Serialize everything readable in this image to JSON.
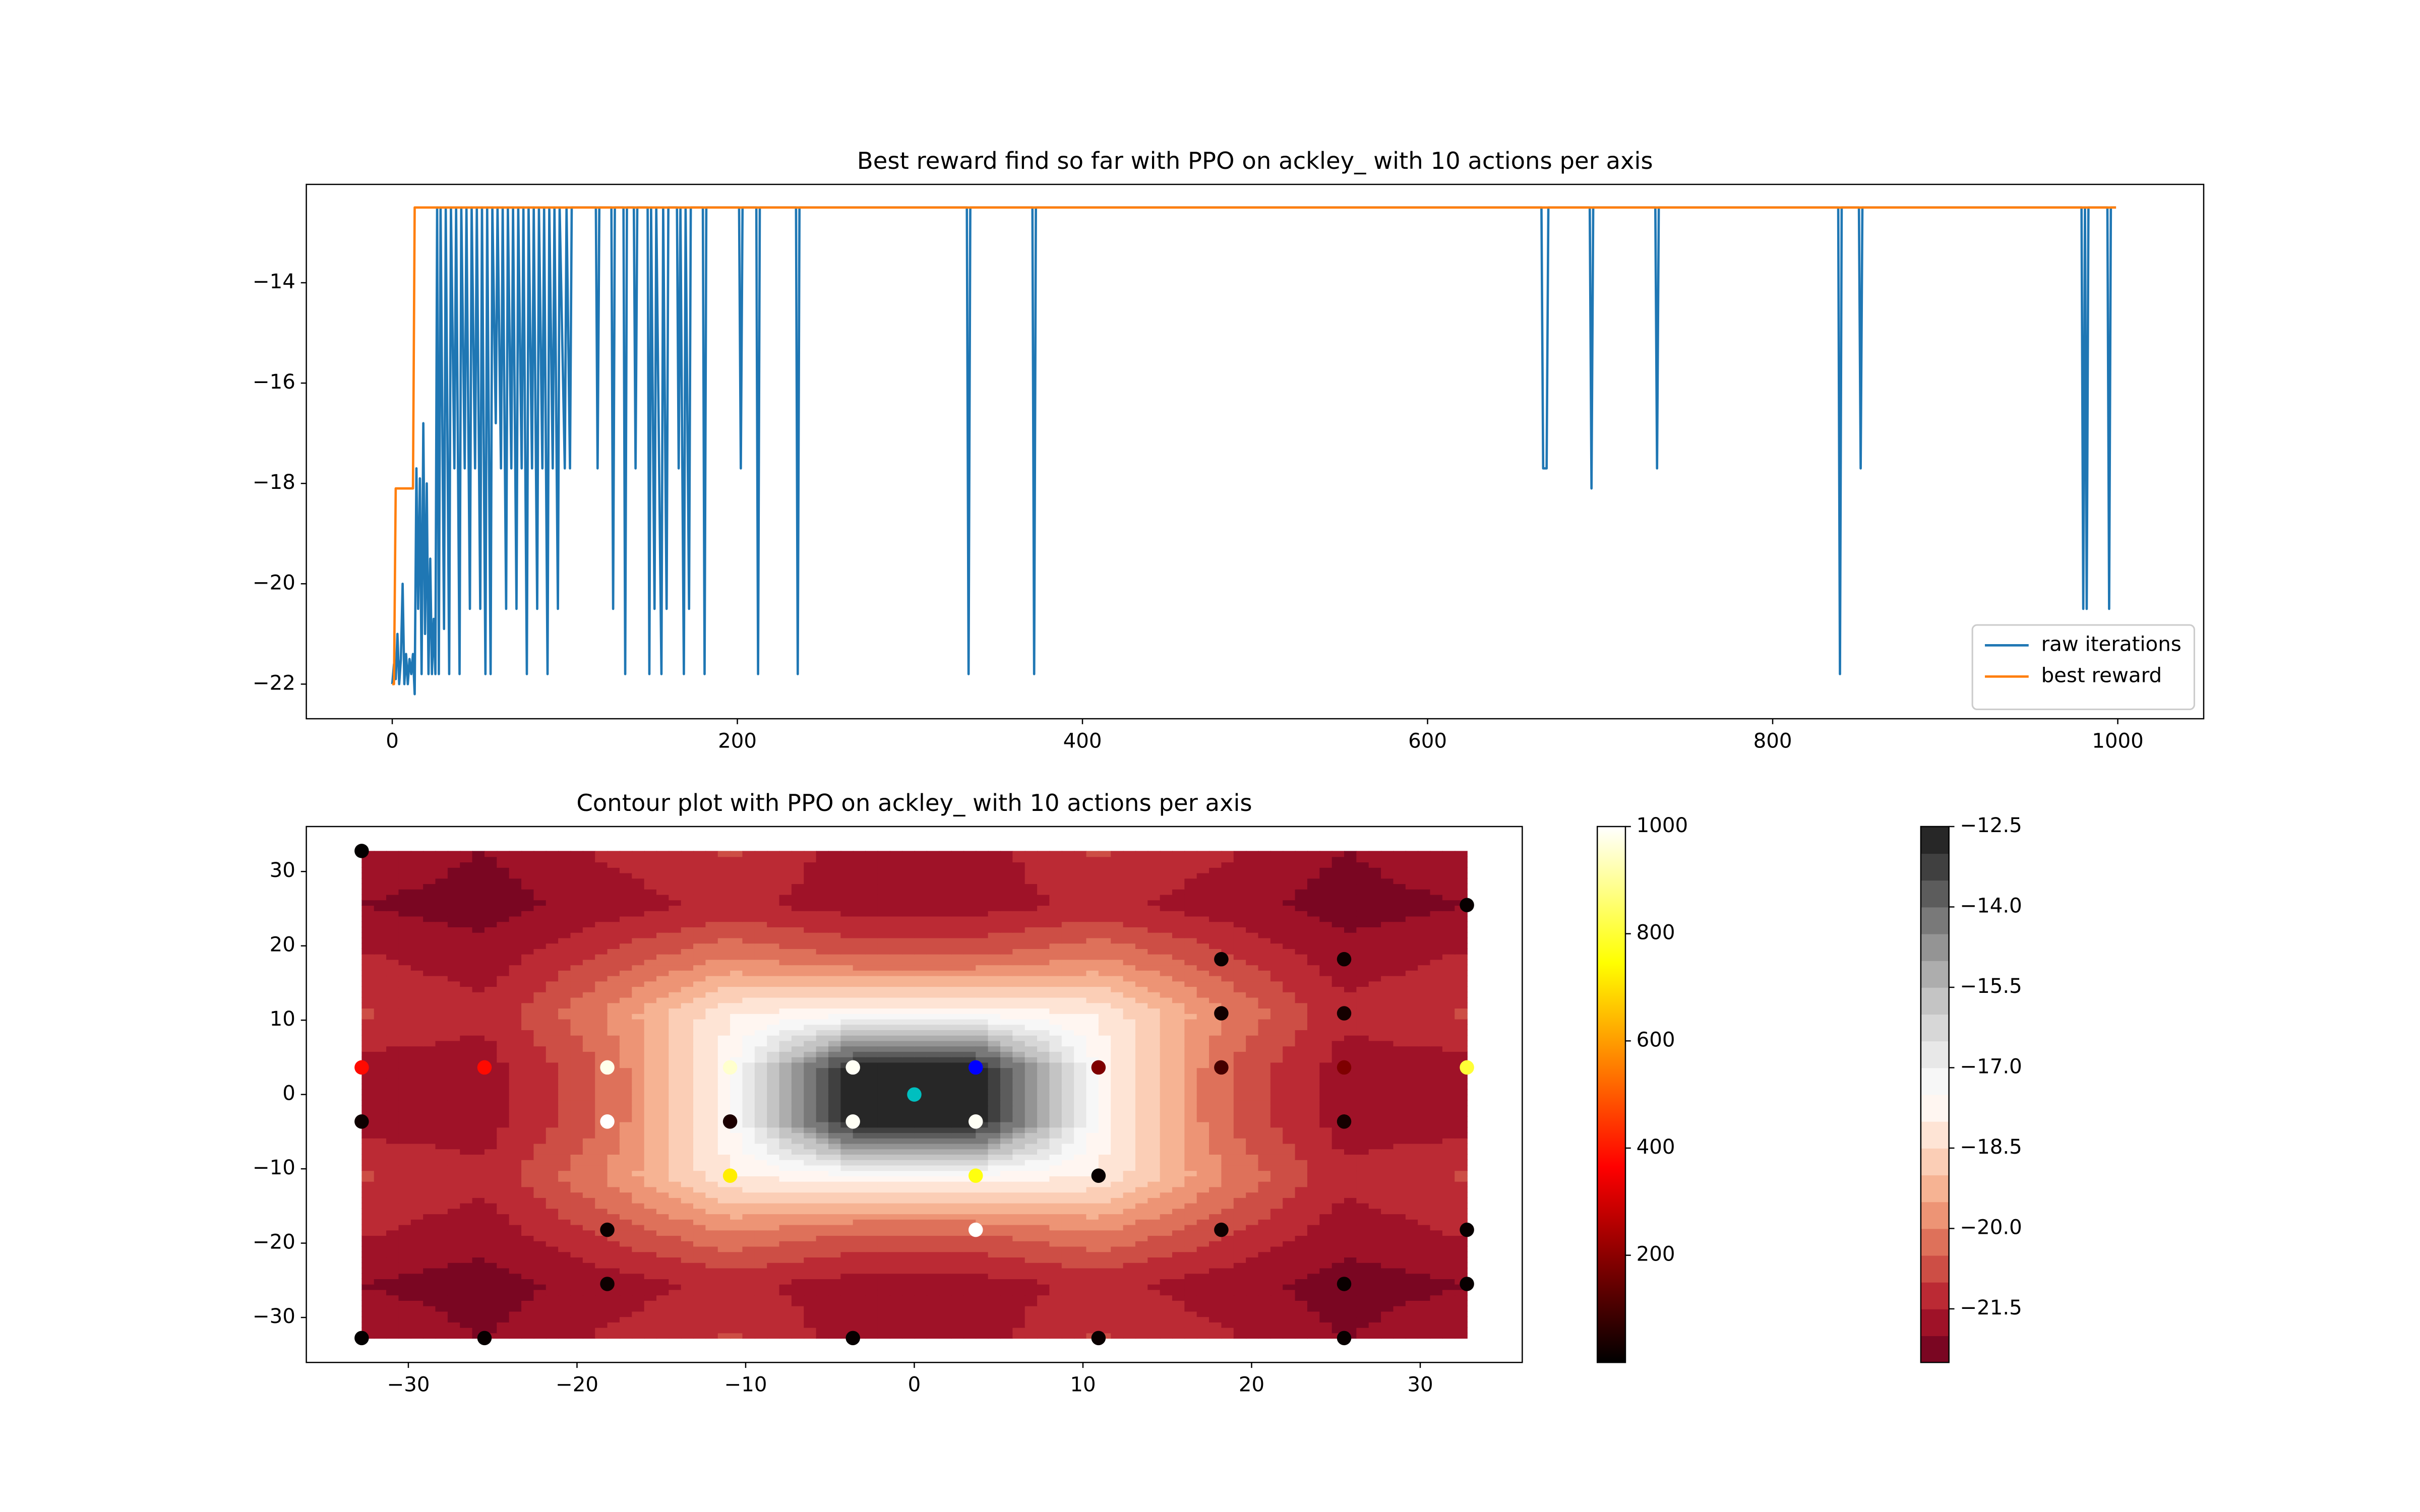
{
  "chart_data": [
    {
      "type": "line",
      "title": "Best reward find so far with PPO on ackley_ with 10 actions per axis",
      "xlim": [
        -49.8,
        1049.8
      ],
      "ylim": [
        -22.69,
        -12.04
      ],
      "xticks": [
        0,
        200,
        400,
        600,
        800,
        1000
      ],
      "yticks": [
        {
          "value": -22,
          "label": "−22"
        },
        {
          "value": -20,
          "label": "−20"
        },
        {
          "value": -18,
          "label": "−18"
        },
        {
          "value": -16,
          "label": "−16"
        },
        {
          "value": -14,
          "label": "−14"
        }
      ],
      "legend": "lower right",
      "series": [
        {
          "name": "raw iterations",
          "color": "#1f77b4",
          "x": [
            0,
            1,
            2,
            3,
            4,
            5,
            6,
            7,
            8,
            9,
            10,
            11,
            12,
            13,
            14,
            15,
            16,
            17,
            18,
            19,
            20,
            21,
            22,
            23,
            24,
            25,
            26,
            27,
            28,
            30,
            31,
            33,
            34,
            36,
            37,
            39,
            40,
            42,
            43,
            45,
            46,
            48,
            49,
            51,
            52,
            54,
            55,
            57,
            58,
            60,
            61,
            63,
            64,
            66,
            67,
            69,
            70,
            72,
            73,
            75,
            76,
            78,
            79,
            81,
            82,
            84,
            85,
            87,
            88,
            90,
            91,
            93,
            94,
            96,
            97,
            100,
            101,
            103,
            104,
            118,
            119,
            120,
            127,
            128,
            129,
            134,
            135,
            136,
            140,
            141,
            142,
            148,
            149,
            150,
            152,
            153,
            156,
            157,
            159,
            160,
            165,
            166,
            167,
            169,
            170,
            172,
            173,
            180,
            181,
            182,
            201,
            202,
            203,
            211,
            212,
            213,
            234,
            235,
            236,
            333,
            334,
            335,
            371,
            372,
            373,
            666,
            667,
            669,
            670,
            694,
            695,
            696,
            732,
            733,
            734,
            838,
            839,
            840,
            850,
            851,
            852,
            979,
            980,
            981,
            982,
            983,
            994,
            995,
            996,
            999
          ],
          "values": [
            -22,
            -21.6,
            -21.9,
            -21,
            -22,
            -21.5,
            -20,
            -22,
            -21.4,
            -22,
            -21.5,
            -21.8,
            -21.4,
            -22.2,
            -17.7,
            -20.5,
            -17.9,
            -21.8,
            -16.8,
            -21,
            -18,
            -21.8,
            -19.5,
            -21.8,
            -20.7,
            -21.8,
            -12.5,
            -21.8,
            -12.5,
            -20.9,
            -12.5,
            -21.8,
            -12.5,
            -17.7,
            -12.5,
            -21.8,
            -12.5,
            -17.7,
            -12.5,
            -20.5,
            -12.5,
            -17.7,
            -12.5,
            -20.5,
            -12.5,
            -21.8,
            -12.5,
            -21.8,
            -12.5,
            -16.8,
            -12.5,
            -17.7,
            -12.5,
            -20.5,
            -12.5,
            -17.7,
            -12.5,
            -20.5,
            -12.5,
            -17.7,
            -12.5,
            -21.8,
            -12.5,
            -17.7,
            -12.5,
            -20.5,
            -12.5,
            -17.7,
            -12.5,
            -21.8,
            -12.5,
            -17.7,
            -12.5,
            -20.5,
            -12.5,
            -17.7,
            -12.5,
            -17.7,
            -12.5,
            -12.5,
            -17.7,
            -12.5,
            -12.5,
            -20.5,
            -12.5,
            -12.5,
            -21.8,
            -12.5,
            -12.5,
            -17.7,
            -12.5,
            -12.5,
            -21.8,
            -12.5,
            -20.5,
            -12.5,
            -21.8,
            -12.5,
            -20.5,
            -12.5,
            -12.5,
            -17.7,
            -12.5,
            -21.8,
            -12.5,
            -20.5,
            -12.5,
            -12.5,
            -21.8,
            -12.5,
            -12.5,
            -17.7,
            -12.5,
            -12.5,
            -21.8,
            -12.5,
            -12.5,
            -21.8,
            -12.5,
            -12.5,
            -21.8,
            -12.5,
            -12.5,
            -21.8,
            -12.5,
            -12.5,
            -17.7,
            -17.7,
            -12.5,
            -12.5,
            -18.1,
            -12.5,
            -12.5,
            -17.7,
            -12.5,
            -12.5,
            -21.8,
            -12.5,
            -12.5,
            -17.7,
            -12.5,
            -12.5,
            -20.5,
            -12.5,
            -20.5,
            -12.5,
            -12.5,
            -20.5,
            -12.5,
            -12.5
          ]
        },
        {
          "name": "best reward",
          "color": "#ff7f0e",
          "x": [
            0,
            1,
            2,
            12,
            13,
            999
          ],
          "values": [
            -22,
            -22,
            -18.1,
            -18.1,
            -12.5,
            -12.5
          ]
        }
      ]
    },
    {
      "type": "contour",
      "title": "Contour plot with PPO on ackley_ with 10 actions per axis",
      "xlim": [
        -36.05,
        36.05
      ],
      "ylim": [
        -36.05,
        36.05
      ],
      "xticks": [
        {
          "value": -30,
          "label": "−30"
        },
        {
          "value": -20,
          "label": "−20"
        },
        {
          "value": -10,
          "label": "−10"
        },
        0,
        10,
        20,
        30
      ],
      "yticks": [
        {
          "value": -30,
          "label": "−30"
        },
        {
          "value": -20,
          "label": "−20"
        },
        {
          "value": -10,
          "label": "−10"
        },
        0,
        10,
        20,
        30
      ],
      "grid_x": [
        -32.768,
        -25.486,
        -18.204,
        -10.923,
        -3.641,
        3.641,
        10.923,
        18.204,
        25.486,
        32.768
      ],
      "grid_y": [
        -32.768,
        -25.486,
        -18.204,
        -10.923,
        -3.641,
        3.641,
        10.923,
        18.204,
        25.486,
        32.768
      ],
      "z": [
        [
          -21.57,
          -22.02,
          -21.4,
          -20.92,
          -21.76,
          -21.76,
          -20.92,
          -21.4,
          -22.02,
          -21.57
        ],
        [
          -22.02,
          -22.23,
          -21.78,
          -21.38,
          -21.75,
          -21.75,
          -21.38,
          -21.78,
          -22.23,
          -22.02
        ],
        [
          -21.4,
          -21.78,
          -20.86,
          -19.93,
          -20.43,
          -20.43,
          -19.93,
          -20.86,
          -21.78,
          -21.4
        ],
        [
          -20.92,
          -21.38,
          -19.93,
          -18.05,
          -17.66,
          -17.66,
          -18.05,
          -19.93,
          -21.38,
          -20.92
        ],
        [
          -21.76,
          -21.75,
          -20.43,
          -17.66,
          -12.53,
          -12.53,
          -17.66,
          -20.43,
          -21.75,
          -21.76
        ],
        [
          -21.76,
          -21.75,
          -20.43,
          -17.66,
          -12.53,
          -12.53,
          -17.66,
          -20.43,
          -21.75,
          -21.76
        ],
        [
          -20.92,
          -21.38,
          -19.93,
          -18.05,
          -17.66,
          -17.66,
          -18.05,
          -19.93,
          -21.38,
          -20.92
        ],
        [
          -21.4,
          -21.78,
          -20.86,
          -19.93,
          -20.43,
          -20.43,
          -19.93,
          -20.86,
          -21.78,
          -21.4
        ],
        [
          -22.02,
          -22.23,
          -21.78,
          -21.38,
          -21.75,
          -21.75,
          -21.38,
          -21.78,
          -22.23,
          -22.02
        ],
        [
          -21.57,
          -22.02,
          -21.4,
          -20.92,
          -21.76,
          -21.76,
          -20.92,
          -21.4,
          -22.02,
          -21.57
        ]
      ],
      "levels": [
        -22.5,
        -22,
        -21.5,
        -21,
        -20.5,
        -20,
        -19.5,
        -19,
        -18.5,
        -18,
        -17.5,
        -17,
        -16.5,
        -16,
        -15.5,
        -15,
        -14.5,
        -14,
        -13.5,
        -13,
        -12.5
      ],
      "colormap": [
        "#67001f",
        "#b2182b",
        "#d6604d",
        "#f4a582",
        "#fddbc7",
        "#ffffff",
        "#e0e0e0",
        "#bababa",
        "#878787",
        "#4d4d4d",
        "#1a1a1a"
      ],
      "scatter": {
        "colormap": "hot",
        "clim": [
          0,
          1000
        ],
        "x": [
          -32.768,
          32.768,
          18.204,
          25.486,
          18.204,
          25.486,
          -32.768,
          -25.486,
          -18.204,
          -10.923,
          -3.641,
          10.923,
          18.204,
          25.486,
          32.768,
          -32.768,
          -18.204,
          -10.923,
          -3.641,
          3.641,
          25.486,
          -10.923,
          3.641,
          10.923,
          -18.204,
          3.641,
          18.204,
          32.768,
          -18.204,
          25.486,
          32.768,
          -32.768,
          -25.486,
          -3.641,
          10.923,
          25.486
        ],
        "y": [
          32.768,
          25.486,
          18.204,
          18.204,
          10.923,
          10.923,
          3.641,
          3.641,
          3.641,
          3.641,
          3.641,
          3.641,
          3.641,
          3.641,
          3.641,
          -3.641,
          -3.641,
          -3.641,
          -3.641,
          -3.641,
          -3.641,
          -10.923,
          -10.923,
          -10.923,
          -18.204,
          -18.204,
          -18.204,
          -18.204,
          -25.486,
          -25.486,
          -25.486,
          -32.768,
          -32.768,
          -32.768,
          -32.768,
          -32.768
        ],
        "c": [
          5,
          10,
          15,
          20,
          25,
          30,
          380,
          380,
          980,
          950,
          990,
          180,
          100,
          180,
          800,
          20,
          1000,
          40,
          990,
          990,
          30,
          720,
          760,
          10,
          15,
          1000,
          20,
          10,
          20,
          15,
          10,
          5,
          10,
          10,
          15,
          10
        ]
      },
      "markers": [
        {
          "x": 3.641,
          "y": 3.641,
          "color": "#0000ff"
        },
        {
          "x": 0,
          "y": 0,
          "color": "#00bfbf"
        }
      ],
      "colorbars": [
        {
          "colormap": "hot",
          "yticks": [
            200,
            400,
            600,
            800,
            1000
          ]
        },
        {
          "colormap": "levels",
          "yticks": [
            {
              "value": -21.5,
              "label": "−21.5"
            },
            {
              "value": -20,
              "label": "−20.0"
            },
            {
              "value": -18.5,
              "label": "−18.5"
            },
            {
              "value": -17,
              "label": "−17.0"
            },
            {
              "value": -15.5,
              "label": "−15.5"
            },
            {
              "value": -14,
              "label": "−14.0"
            },
            {
              "value": -12.5,
              "label": "−12.5"
            }
          ]
        }
      ]
    }
  ]
}
